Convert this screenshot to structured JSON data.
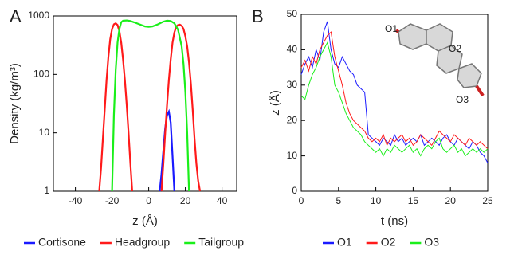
{
  "chart_data": [
    {
      "type": "line",
      "label": "A",
      "xlabel": "z (Å)",
      "ylabel": "Density (kg/m³)",
      "yscale": "log",
      "xlim": [
        -52,
        48
      ],
      "xticks": [
        -40,
        -20,
        0,
        20,
        40
      ],
      "ylim": [
        1,
        1000
      ],
      "yticks": [
        1,
        10,
        100,
        1000
      ],
      "series": [
        {
          "name": "Cortisone",
          "color": "#1a1aff",
          "x": [
            6,
            7,
            8,
            9,
            10,
            11,
            12,
            13,
            14
          ],
          "values": [
            1,
            2,
            5,
            12,
            20,
            23,
            15,
            4,
            1
          ]
        },
        {
          "name": "Headgroup",
          "color": "#ff1a1a",
          "x": [
            -27,
            -26,
            -25,
            -24,
            -23,
            -22,
            -21,
            -20,
            -19,
            -18,
            -17,
            -16,
            -15,
            -14,
            -13,
            -12,
            -11,
            -10,
            -9,
            null,
            7,
            8,
            9,
            10,
            11,
            12,
            13,
            14,
            15,
            16,
            17,
            18,
            19,
            20,
            21,
            22,
            23,
            24,
            25,
            26,
            27,
            28
          ],
          "values": [
            1,
            2.5,
            8,
            25,
            80,
            200,
            400,
            600,
            720,
            750,
            700,
            550,
            350,
            180,
            80,
            30,
            10,
            3,
            1,
            null,
            1,
            3,
            10,
            30,
            80,
            180,
            350,
            520,
            650,
            700,
            710,
            680,
            600,
            450,
            300,
            160,
            70,
            25,
            8,
            3,
            1.5,
            1
          ]
        },
        {
          "name": "Tailgroup",
          "color": "#1aef1a",
          "x": [
            -20,
            -19,
            -18,
            -17,
            -16,
            -15,
            -14,
            -12,
            -10,
            -8,
            -5,
            -2,
            0,
            2,
            5,
            8,
            10,
            12,
            14,
            16,
            18,
            19,
            20,
            21,
            22
          ],
          "values": [
            1,
            20,
            120,
            350,
            600,
            780,
            830,
            840,
            820,
            780,
            720,
            660,
            650,
            660,
            720,
            800,
            830,
            820,
            750,
            580,
            300,
            150,
            50,
            10,
            1
          ]
        }
      ]
    },
    {
      "type": "line",
      "label": "B",
      "xlabel": "t (ns)",
      "ylabel": "z (Å)",
      "xlim": [
        0,
        25
      ],
      "xticks": [
        0,
        5,
        10,
        15,
        20,
        25
      ],
      "ylim": [
        0,
        50
      ],
      "yticks": [
        0,
        10,
        20,
        30,
        40,
        50
      ],
      "annotations": [
        "O1",
        "O2",
        "O3"
      ],
      "x": [
        0,
        0.5,
        1,
        1.5,
        2,
        2.5,
        3,
        3.5,
        4,
        4.5,
        5,
        5.5,
        6,
        6.5,
        7,
        7.5,
        8,
        8.5,
        9,
        9.5,
        10,
        10.5,
        11,
        11.5,
        12,
        12.5,
        13,
        13.5,
        14,
        14.5,
        15,
        15.5,
        16,
        16.5,
        17,
        17.5,
        18,
        18.5,
        19,
        19.5,
        20,
        20.5,
        21,
        21.5,
        22,
        22.5,
        23,
        23.5,
        24,
        24.5,
        25
      ],
      "series": [
        {
          "name": "O1",
          "color": "#1a1aff",
          "values": [
            33,
            36,
            38,
            35,
            40,
            37,
            45,
            48,
            40,
            36,
            35,
            38,
            36,
            34,
            33,
            30,
            29,
            28,
            16,
            15,
            14,
            13,
            15,
            14,
            13,
            16,
            14,
            15,
            13,
            14,
            15,
            14,
            16,
            13,
            14,
            15,
            14,
            13,
            15,
            16,
            14,
            13,
            15,
            14,
            13,
            12,
            14,
            13,
            11,
            10,
            8
          ]
        },
        {
          "name": "O2",
          "color": "#ff1a1a",
          "values": [
            35,
            37,
            34,
            38,
            36,
            40,
            42,
            44,
            45,
            38,
            34,
            30,
            25,
            22,
            20,
            19,
            18,
            17,
            15,
            14,
            15,
            14,
            16,
            13,
            15,
            14,
            15,
            16,
            14,
            15,
            13,
            14,
            16,
            15,
            14,
            13,
            15,
            17,
            16,
            15,
            14,
            16,
            15,
            14,
            13,
            15,
            14,
            13,
            14,
            13,
            12
          ]
        },
        {
          "name": "O3",
          "color": "#1aef1a",
          "values": [
            27,
            26,
            30,
            33,
            35,
            38,
            40,
            42,
            38,
            30,
            28,
            25,
            22,
            20,
            18,
            17,
            16,
            14,
            13,
            12,
            11,
            12,
            10,
            12,
            11,
            13,
            12,
            11,
            12,
            13,
            11,
            12,
            10,
            12,
            13,
            12,
            14,
            15,
            12,
            11,
            12,
            13,
            11,
            12,
            10,
            11,
            12,
            11,
            12,
            11,
            12
          ]
        }
      ]
    }
  ]
}
